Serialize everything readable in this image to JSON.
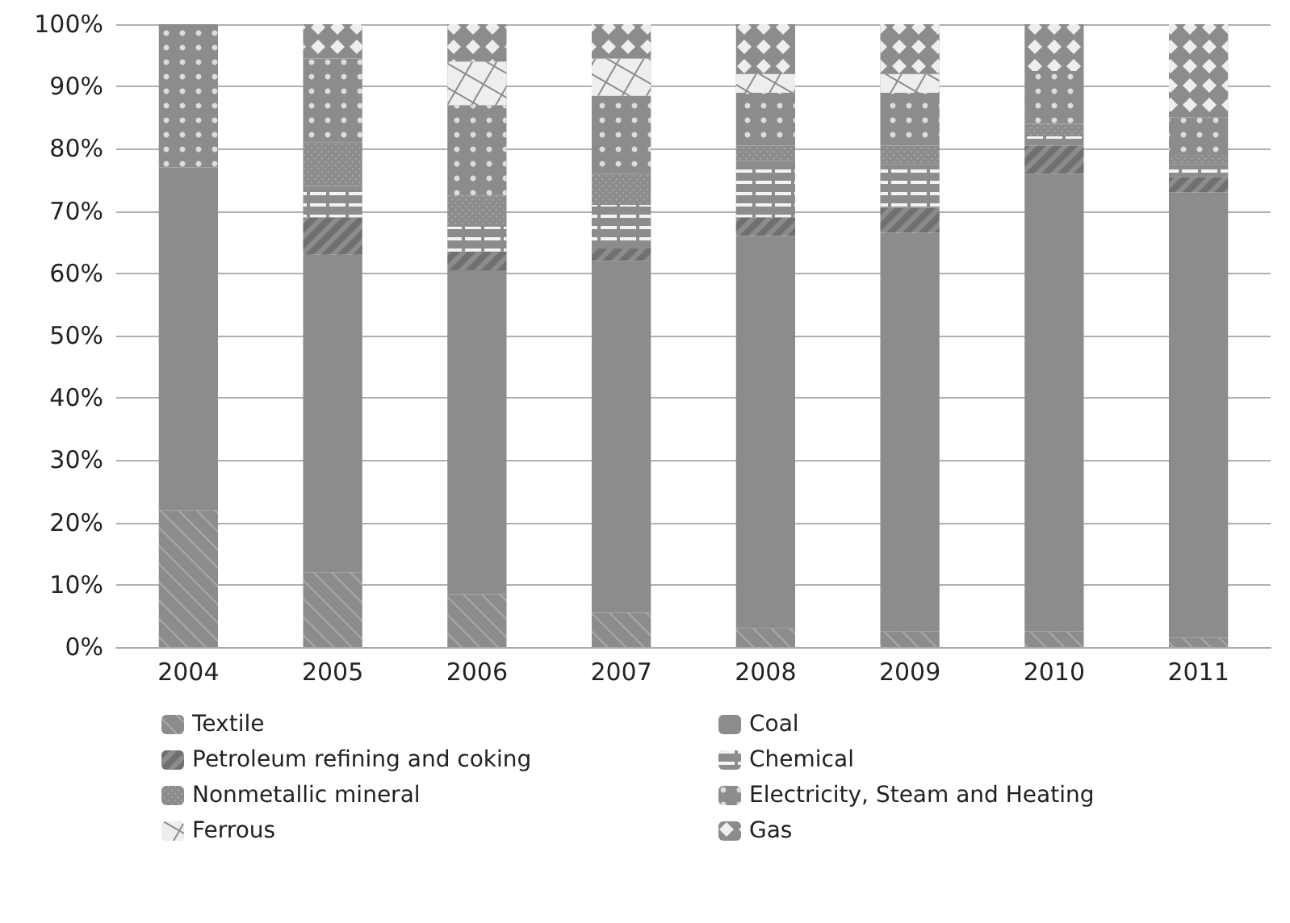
{
  "chart_data": {
    "type": "bar",
    "stacked": true,
    "categories": [
      "2004",
      "2005",
      "2006",
      "2007",
      "2008",
      "2009",
      "2010",
      "2011"
    ],
    "series": [
      {
        "name": "Textile",
        "color": "#8c8c8c",
        "values": [
          22,
          12,
          8.5,
          5.5,
          3,
          2.5,
          2.5,
          1.5
        ]
      },
      {
        "name": "Coal",
        "color": "#8c8c8c",
        "values": [
          55,
          51,
          52,
          56.5,
          63,
          64,
          73.5,
          71.5
        ]
      },
      {
        "name": "Petroleum refining and coking",
        "color": "#8c8c8c",
        "values": [
          0,
          6,
          3,
          2,
          3,
          4,
          4.5,
          2.5
        ]
      },
      {
        "name": "Chemical",
        "color": "#8c8c8c",
        "values": [
          0,
          5,
          4,
          7,
          9,
          7,
          1.5,
          2
        ]
      },
      {
        "name": "Nonmetallic mineral",
        "color": "#8c8c8c",
        "values": [
          0,
          7,
          5,
          5,
          2.5,
          3,
          2,
          1.5
        ]
      },
      {
        "name": "Electricity, Steam and Heating",
        "color": "#8c8c8c",
        "values": [
          23,
          13.5,
          14.5,
          12.5,
          8.5,
          8.5,
          8.5,
          6
        ]
      },
      {
        "name": "Ferrous",
        "color": "#8c8c8c",
        "values": [
          0,
          0,
          7,
          6,
          3,
          3,
          0,
          0
        ]
      },
      {
        "name": "Gas",
        "color": "#8c8c8c",
        "values": [
          0,
          5.5,
          6,
          5.5,
          8,
          8,
          7.5,
          15
        ]
      }
    ],
    "ylim": [
      0,
      100
    ],
    "yticks": [
      {
        "value": 0,
        "label": "0%"
      },
      {
        "value": 10,
        "label": "10%"
      },
      {
        "value": 20,
        "label": "20%"
      },
      {
        "value": 30,
        "label": "30%"
      },
      {
        "value": 40,
        "label": "40%"
      },
      {
        "value": 50,
        "label": "50%"
      },
      {
        "value": 60,
        "label": "60%"
      },
      {
        "value": 70,
        "label": "70%"
      },
      {
        "value": 80,
        "label": "80%"
      },
      {
        "value": 90,
        "label": "90%"
      },
      {
        "value": 100,
        "label": "100%"
      }
    ],
    "grid": "y",
    "legend": "bottom"
  }
}
